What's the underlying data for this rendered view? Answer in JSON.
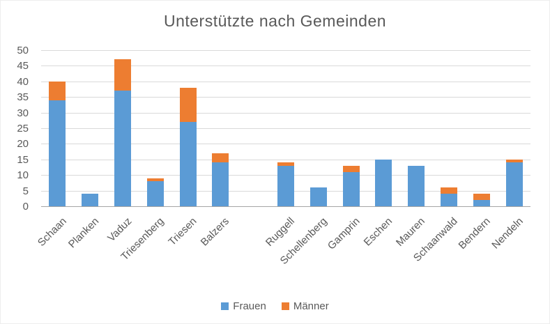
{
  "chart_data": {
    "type": "bar",
    "stacked": true,
    "title": "Unterstützte nach Gemeinden",
    "categories": [
      "Schaan",
      "Planken",
      "Vaduz",
      "Triesenberg",
      "Triesen",
      "Balzers",
      "",
      "Ruggell",
      "Schellenberg",
      "Gamprin",
      "Eschen",
      "Mauren",
      "Schaanwald",
      "Bendern",
      "Nendeln"
    ],
    "series": [
      {
        "name": "Frauen",
        "color": "#5b9bd5",
        "values": [
          34,
          4,
          37,
          8,
          27,
          14,
          null,
          13,
          6,
          11,
          15,
          13,
          4,
          2,
          14
        ]
      },
      {
        "name": "Männer",
        "color": "#ed7d31",
        "values": [
          6,
          0,
          10,
          1,
          11,
          3,
          null,
          1,
          0,
          2,
          0,
          0,
          2,
          2,
          1
        ]
      }
    ],
    "ylim": [
      0,
      50
    ],
    "ytick_step": 5,
    "yticks": [
      0,
      5,
      10,
      15,
      20,
      25,
      30,
      35,
      40,
      45,
      50
    ],
    "grid": true,
    "legend_position": "bottom",
    "colors": {
      "title_text": "#595959",
      "tick_text": "#595959",
      "gridline": "#d9d9d9",
      "axis_line": "#a6a6a6"
    }
  }
}
